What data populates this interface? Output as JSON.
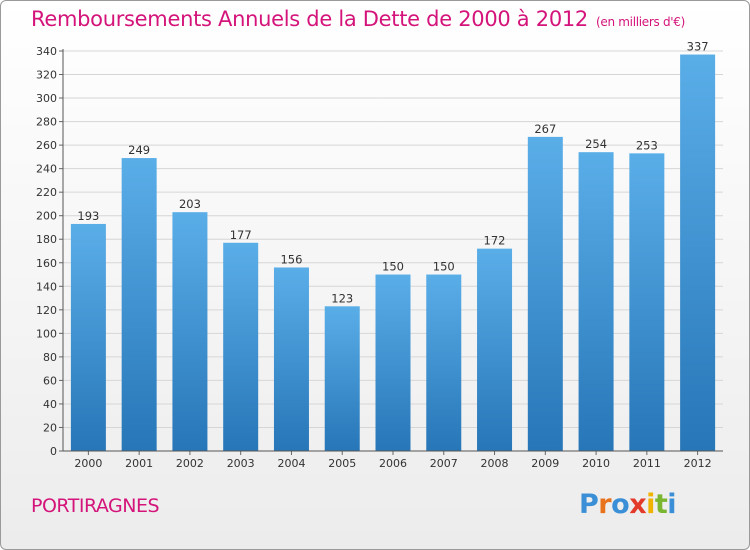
{
  "chart_data": {
    "type": "bar",
    "title": "Remboursements Annuels de la Dette de 2000 à 2012",
    "subtitle": "(en milliers d'€)",
    "categories": [
      "2000",
      "2001",
      "2002",
      "2003",
      "2004",
      "2005",
      "2006",
      "2007",
      "2008",
      "2009",
      "2010",
      "2011",
      "2012"
    ],
    "values": [
      193,
      249,
      203,
      177,
      156,
      123,
      150,
      150,
      172,
      267,
      254,
      253,
      337
    ],
    "ylim": [
      0,
      340
    ],
    "yticks": [
      0,
      20,
      40,
      60,
      80,
      100,
      120,
      140,
      160,
      180,
      200,
      220,
      240,
      260,
      280,
      300,
      320,
      340
    ],
    "grid": true,
    "bar_color_top": "#5aaee8",
    "bar_color_bottom": "#2776b8"
  },
  "footer": {
    "city": "PORTIRAGNES",
    "logo_letters": [
      "P",
      "r",
      "o",
      "x",
      "i",
      "t",
      "i"
    ],
    "logo_colors": [
      "#3a8fd6",
      "#e8731c",
      "#3a8fd6",
      "#e23b2a",
      "#f0b400",
      "#7ab62f",
      "#3a8fd6"
    ]
  }
}
